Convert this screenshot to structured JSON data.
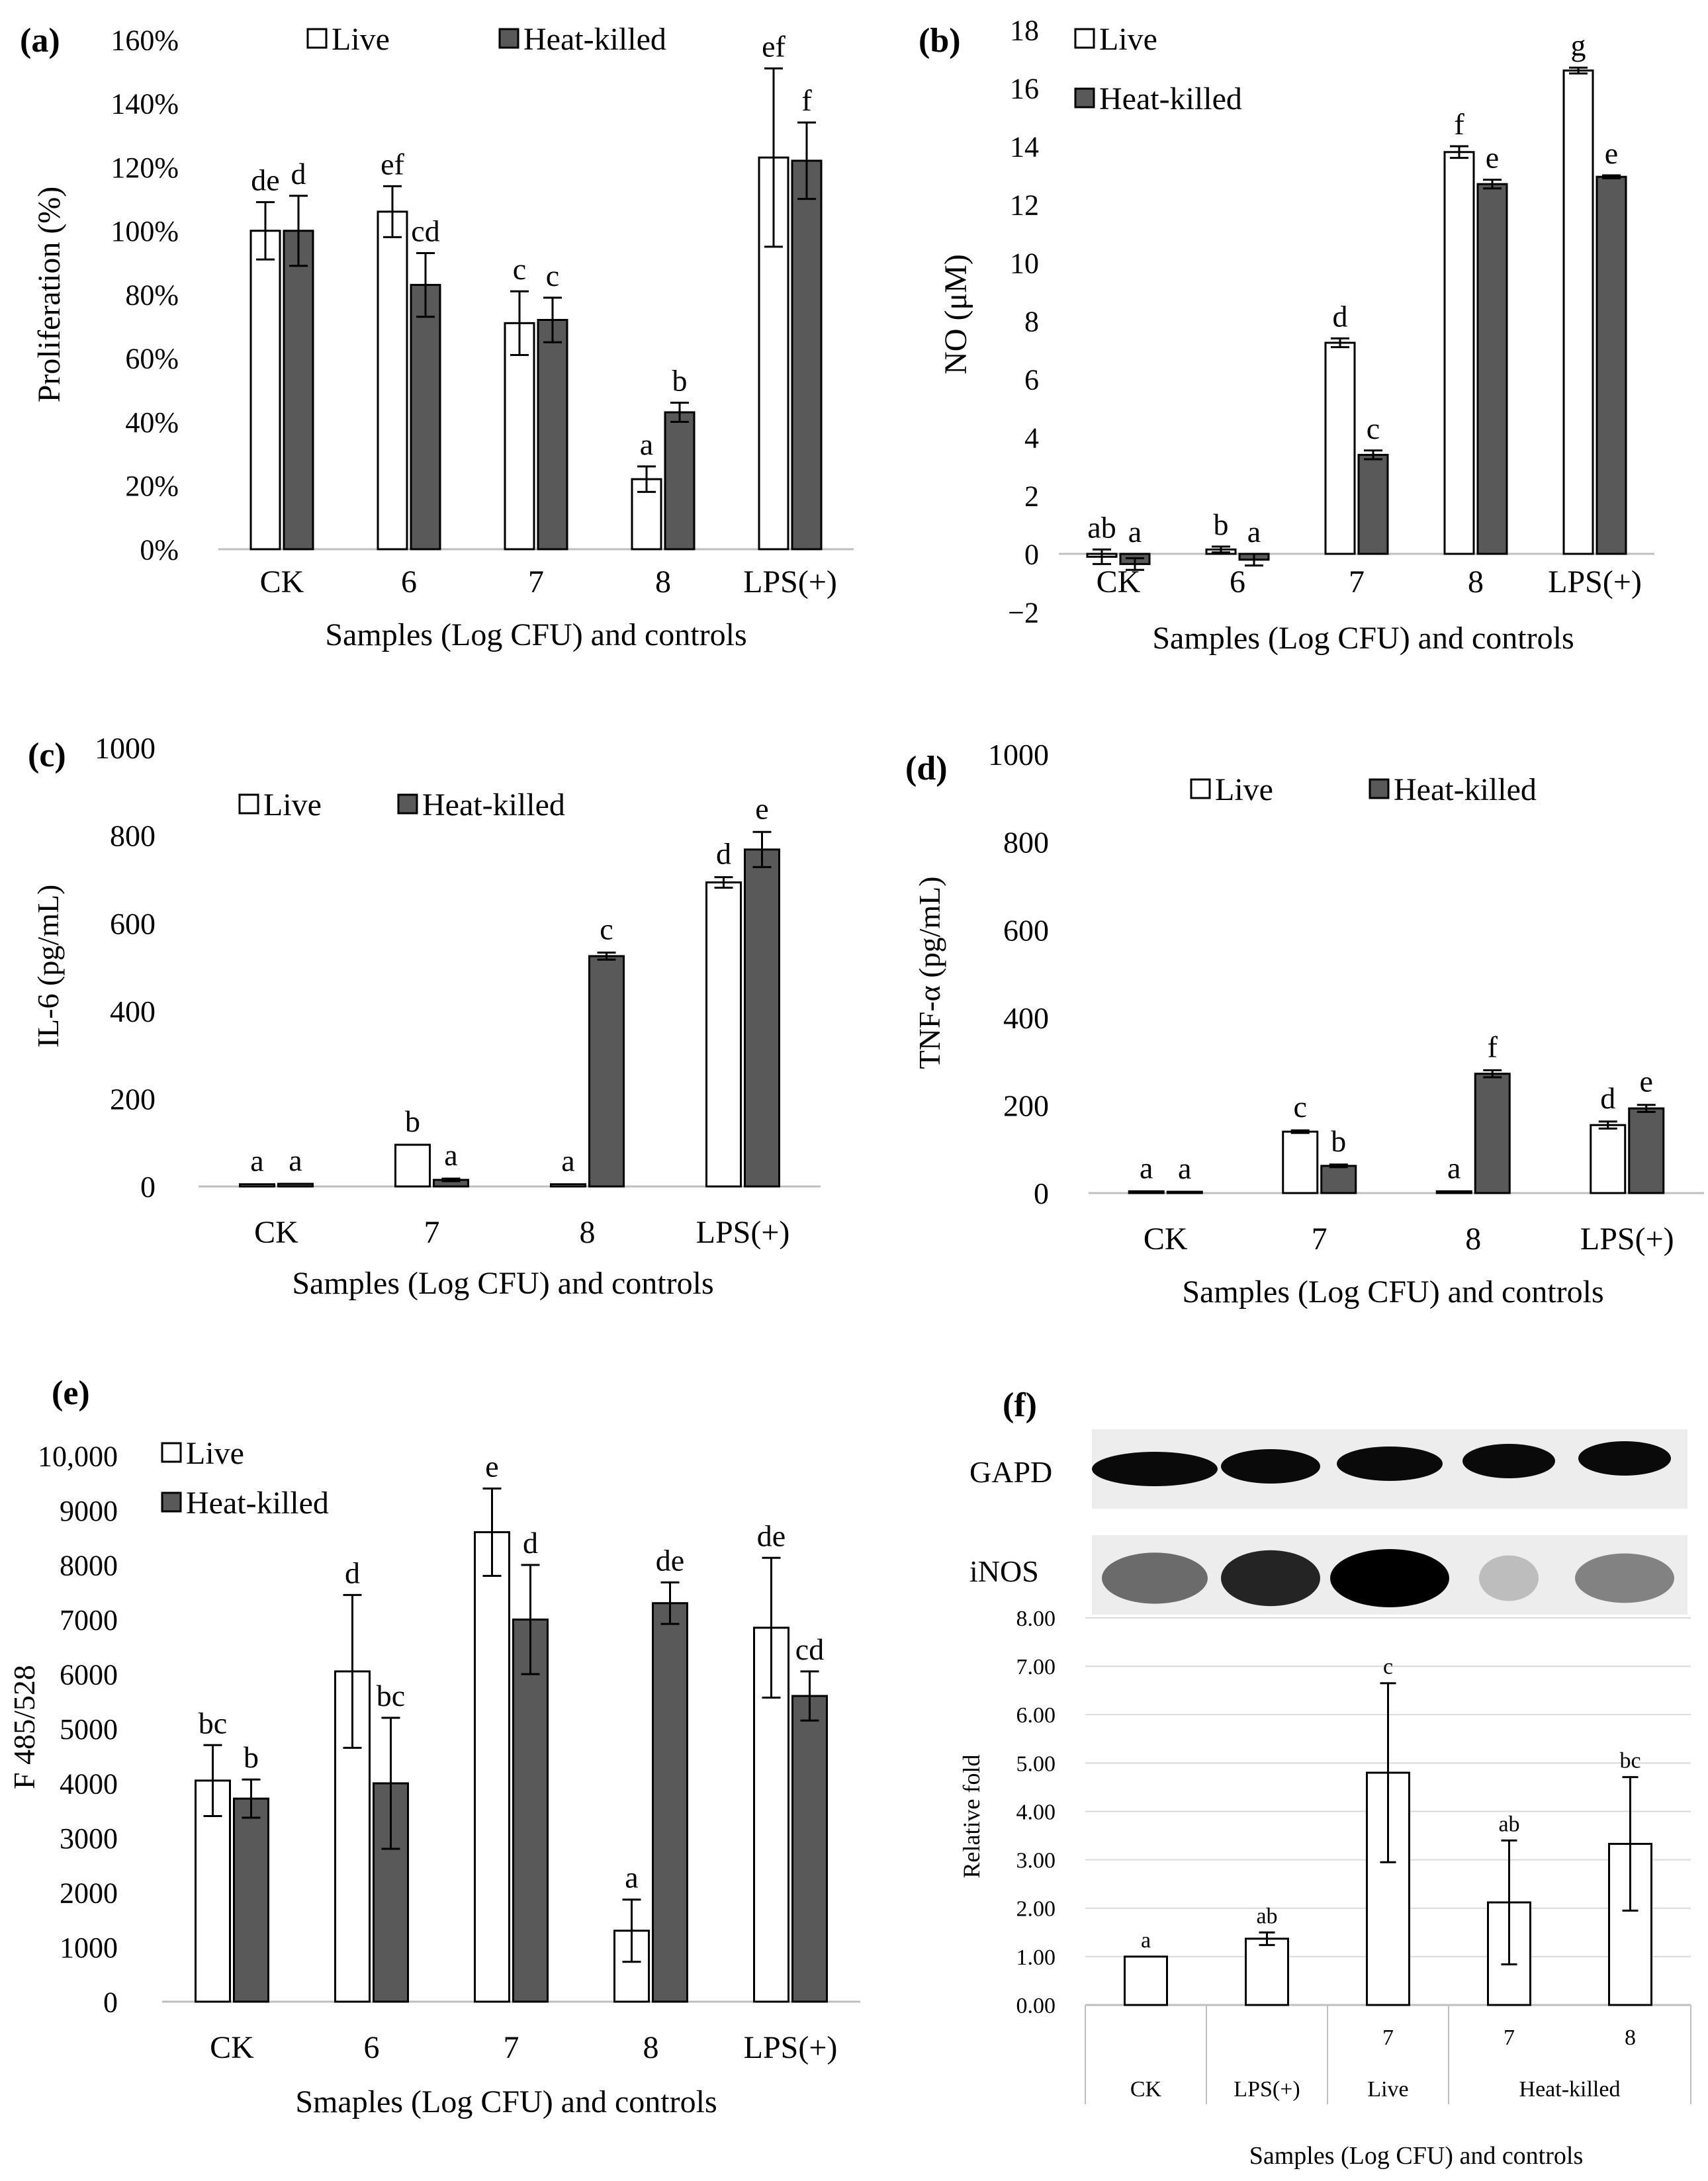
{
  "chart_data": [
    {
      "panel": "(a)",
      "type": "bar",
      "ylabel": "Proliferation (%)",
      "xlabel": "Samples (Log CFU) and controls",
      "ylim": [
        0,
        160
      ],
      "y_ticks": [
        "0%",
        "20%",
        "40%",
        "60%",
        "80%",
        "100%",
        "120%",
        "140%",
        "160%"
      ],
      "categories": [
        "CK",
        "6",
        "7",
        "8",
        "LPS(+)"
      ],
      "legend_position": "top-center",
      "series": [
        {
          "name": "Live",
          "color": "#ffffff",
          "values": [
            100,
            106,
            71,
            22,
            123
          ],
          "errors": [
            9,
            8,
            10,
            4,
            28
          ],
          "letters": [
            "de",
            "ef",
            "c",
            "a",
            "ef"
          ]
        },
        {
          "name": "Heat-killed",
          "color": "#595959",
          "values": [
            100,
            83,
            72,
            43,
            122
          ],
          "errors": [
            11,
            10,
            7,
            3,
            12
          ],
          "letters": [
            "d",
            "cd",
            "c",
            "b",
            "f"
          ]
        }
      ]
    },
    {
      "panel": "(b)",
      "type": "bar",
      "ylabel": "NO (μM)",
      "xlabel": "Samples (Log CFU) and controls",
      "ylim": [
        -2,
        18
      ],
      "y_ticks": [
        "−2",
        "0",
        "2",
        "4",
        "6",
        "8",
        "10",
        "12",
        "14",
        "16",
        "18"
      ],
      "categories": [
        "CK",
        "6",
        "7",
        "8",
        "LPS(+)"
      ],
      "legend_position": "top-left",
      "series": [
        {
          "name": "Live",
          "color": "#ffffff",
          "values": [
            -0.1,
            0.15,
            7.25,
            13.8,
            16.6
          ],
          "errors": [
            0.25,
            0.1,
            0.15,
            0.2,
            0.1
          ],
          "letters": [
            "ab",
            "b",
            "d",
            "f",
            "g"
          ]
        },
        {
          "name": "Heat-killed",
          "color": "#595959",
          "values": [
            -0.35,
            -0.2,
            3.4,
            12.7,
            12.95
          ],
          "errors": [
            0.2,
            0.2,
            0.15,
            0.15,
            0.05
          ],
          "letters": [
            "a",
            "a",
            "c",
            "e",
            "e"
          ]
        }
      ]
    },
    {
      "panel": "(c)",
      "type": "bar",
      "ylabel": "IL-6 (pg/mL)",
      "xlabel": "Samples (Log CFU) and controls",
      "ylim": [
        0,
        1000
      ],
      "y_ticks": [
        "0",
        "200",
        "400",
        "600",
        "800",
        "1000"
      ],
      "categories": [
        "CK",
        "7",
        "8",
        "LPS(+)"
      ],
      "legend_position": "top-center",
      "series": [
        {
          "name": "Live",
          "color": "#ffffff",
          "values": [
            5,
            95,
            5,
            693
          ],
          "errors": [
            0,
            0,
            0,
            12
          ],
          "letters": [
            "a",
            "b",
            "a",
            "d"
          ]
        },
        {
          "name": "Heat-killed",
          "color": "#595959",
          "values": [
            6,
            15,
            525,
            768
          ],
          "errors": [
            0,
            3,
            8,
            40
          ],
          "letters": [
            "a",
            "a",
            "c",
            "e"
          ]
        }
      ]
    },
    {
      "panel": "(d)",
      "type": "bar",
      "ylabel": "TNF-α (pg/mL)",
      "xlabel": "Samples (Log CFU) and controls",
      "ylim": [
        0,
        1000
      ],
      "y_ticks": [
        "0",
        "200",
        "400",
        "600",
        "800",
        "1000"
      ],
      "categories": [
        "CK",
        "7",
        "8",
        "LPS(+)"
      ],
      "legend_position": "top-center",
      "series": [
        {
          "name": "Live",
          "color": "#ffffff",
          "values": [
            4,
            140,
            4,
            155
          ],
          "errors": [
            0,
            3,
            0,
            8
          ],
          "letters": [
            "a",
            "c",
            "a",
            "d"
          ]
        },
        {
          "name": "Heat-killed",
          "color": "#595959",
          "values": [
            3,
            62,
            272,
            193
          ],
          "errors": [
            0,
            3,
            8,
            8
          ],
          "letters": [
            "a",
            "b",
            "f",
            "e"
          ]
        }
      ]
    },
    {
      "panel": "(e)",
      "type": "bar",
      "ylabel": "F 485/528",
      "xlabel": "Smaples (Log CFU) and controls",
      "ylim": [
        0,
        10000
      ],
      "y_ticks": [
        "0",
        "1000",
        "2000",
        "3000",
        "4000",
        "5000",
        "6000",
        "7000",
        "8000",
        "9000",
        "10,000"
      ],
      "categories": [
        "CK",
        "6",
        "7",
        "8",
        "LPS(+)"
      ],
      "legend_position": "top-left",
      "series": [
        {
          "name": "Live",
          "color": "#ffffff",
          "values": [
            4050,
            6050,
            8600,
            1300,
            6850
          ],
          "errors": [
            650,
            1400,
            800,
            570,
            1280
          ],
          "letters": [
            "bc",
            "d",
            "e",
            "a",
            "de"
          ]
        },
        {
          "name": "Heat-killed",
          "color": "#595959",
          "values": [
            3720,
            4000,
            7000,
            7300,
            5600
          ],
          "errors": [
            350,
            1200,
            1000,
            380,
            450
          ],
          "letters": [
            "b",
            "bc",
            "d",
            "de",
            "cd"
          ]
        }
      ]
    },
    {
      "panel": "(f)",
      "type": "bar",
      "ylabel": "Relative fold",
      "xlabel": "Samples (Log CFU) and controls",
      "ylim": [
        0,
        8
      ],
      "y_ticks": [
        "0.00",
        "1.00",
        "2.00",
        "3.00",
        "4.00",
        "5.00",
        "6.00",
        "7.00",
        "8.00"
      ],
      "categories": [
        "CK",
        "LPS(+)",
        "7",
        "7",
        "8"
      ],
      "category_groups": [
        "",
        "",
        "Live",
        "Heat-killed",
        "Heat-killed"
      ],
      "group_labels": [
        "CK",
        "LPS(+)",
        "Live",
        "Heat-killed"
      ],
      "blot_labels": [
        "GAPD",
        "iNOS"
      ],
      "series": [
        {
          "name": "Relative fold",
          "color": "#ffffff",
          "values": [
            1.0,
            1.37,
            4.8,
            2.12,
            3.33
          ],
          "errors": [
            0,
            0.13,
            1.85,
            1.28,
            1.38
          ],
          "letters": [
            "a",
            "ab",
            "c",
            "ab",
            "bc"
          ]
        }
      ]
    }
  ],
  "labels": {
    "panel_a": "(a)",
    "panel_b": "(b)",
    "panel_c": "(c)",
    "panel_d": "(d)",
    "panel_e": "(e)",
    "panel_f": "(f)"
  }
}
